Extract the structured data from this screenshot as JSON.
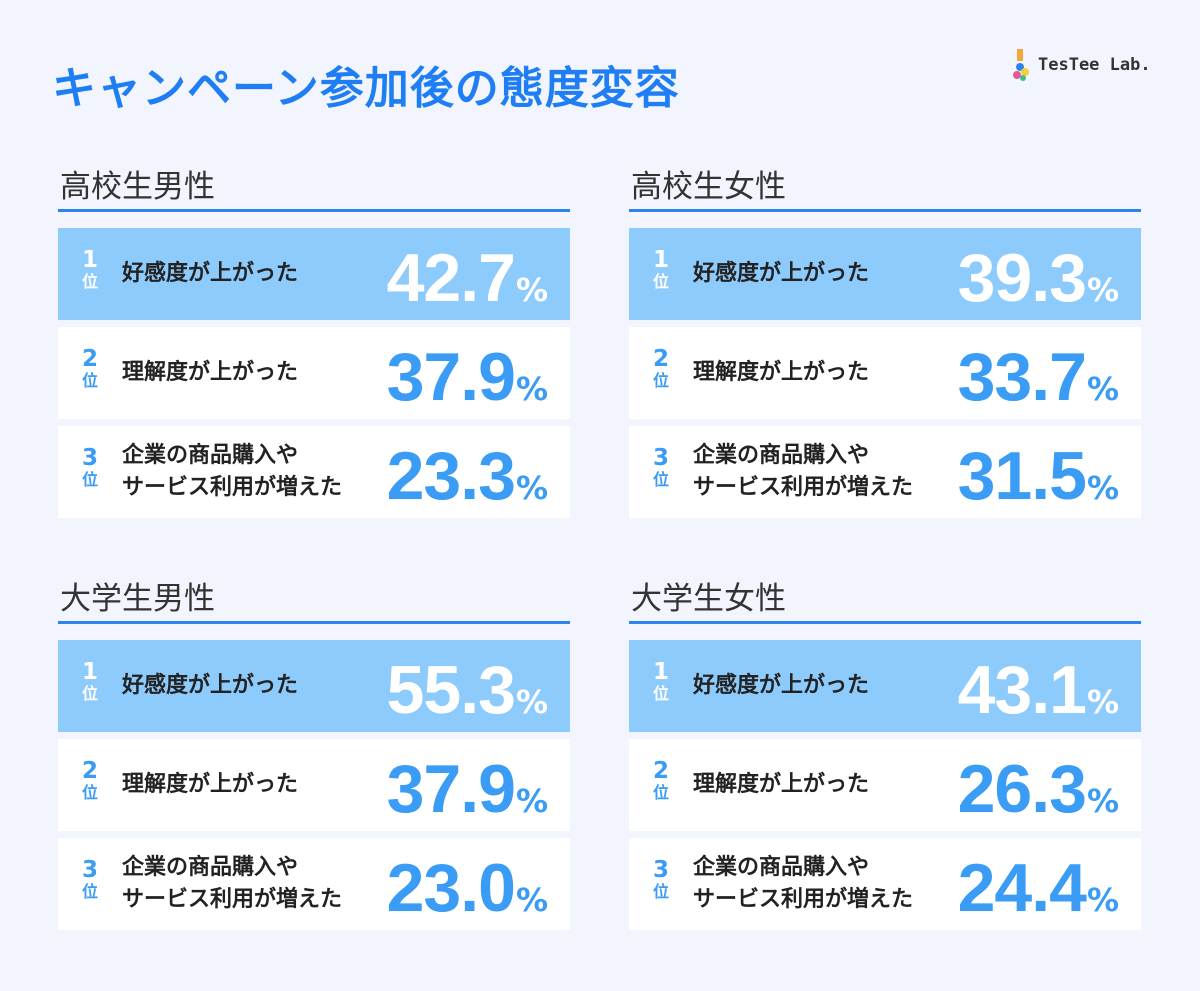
{
  "header": {
    "title": "キャンペーン参加後の態度変容",
    "logo_text": "TesTee Lab."
  },
  "colors": {
    "accent": "#1f7ef3",
    "value": "#3a9cf5",
    "highlight_row": "#8ecbfd",
    "background": "#f2f5fd"
  },
  "rank_suffix": "位",
  "percent_sign": "%",
  "chart_data": [
    {
      "type": "table",
      "title": "高校生男性",
      "rows": [
        {
          "rank": "1",
          "label": "好感度が上がった",
          "value": "42.7"
        },
        {
          "rank": "2",
          "label": "理解度が上がった",
          "value": "37.9"
        },
        {
          "rank": "3",
          "label": "企業の商品購入や\nサービス利用が増えた",
          "value": "23.3"
        }
      ]
    },
    {
      "type": "table",
      "title": "高校生女性",
      "rows": [
        {
          "rank": "1",
          "label": "好感度が上がった",
          "value": "39.3"
        },
        {
          "rank": "2",
          "label": "理解度が上がった",
          "value": "33.7"
        },
        {
          "rank": "3",
          "label": "企業の商品購入や\nサービス利用が増えた",
          "value": "31.5"
        }
      ]
    },
    {
      "type": "table",
      "title": "大学生男性",
      "rows": [
        {
          "rank": "1",
          "label": "好感度が上がった",
          "value": "55.3"
        },
        {
          "rank": "2",
          "label": "理解度が上がった",
          "value": "37.9"
        },
        {
          "rank": "3",
          "label": "企業の商品購入や\nサービス利用が増えた",
          "value": "23.0"
        }
      ]
    },
    {
      "type": "table",
      "title": "大学生女性",
      "rows": [
        {
          "rank": "1",
          "label": "好感度が上がった",
          "value": "43.1"
        },
        {
          "rank": "2",
          "label": "理解度が上がった",
          "value": "26.3"
        },
        {
          "rank": "3",
          "label": "企業の商品購入や\nサービス利用が増えた",
          "value": "24.4"
        }
      ]
    }
  ]
}
